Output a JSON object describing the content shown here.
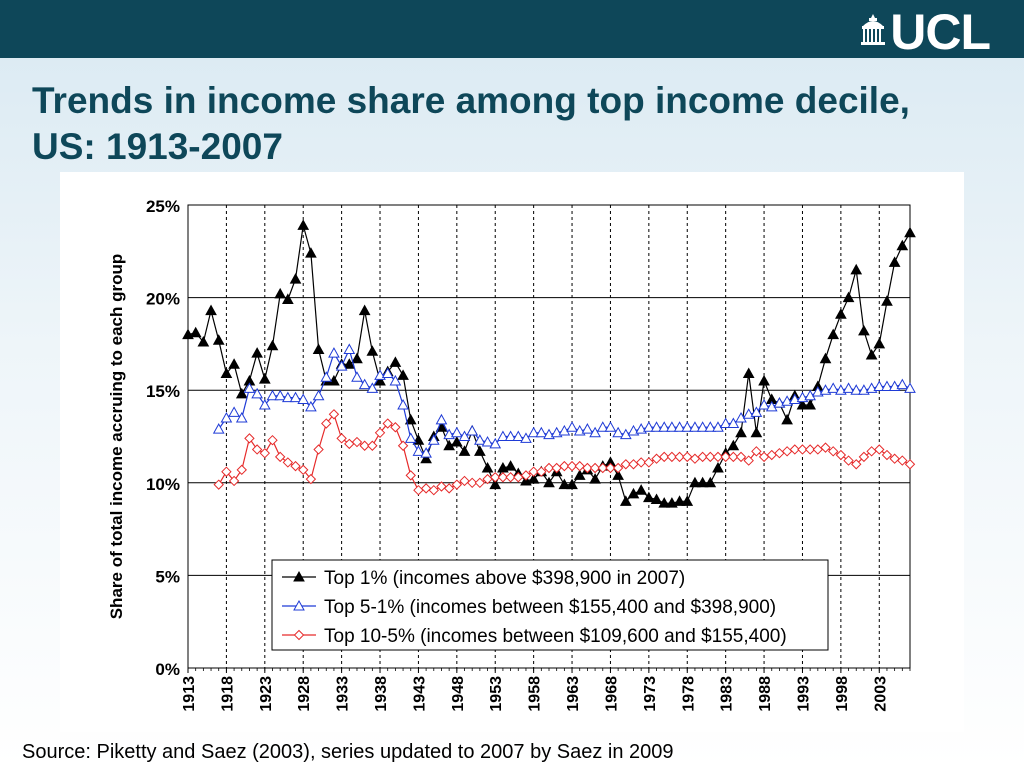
{
  "header": {
    "logo_text": "UCL",
    "bar_color": "#0e4759"
  },
  "slide": {
    "title": "Trends in income share among top income decile, US: 1913-2007",
    "source": "Source: Piketty and Saez (2003), series updated to 2007 by Saez in 2009"
  },
  "chart_data": {
    "type": "line",
    "ylabel": "Share of total income accruing to each group",
    "ylim": [
      0,
      25
    ],
    "yticks": [
      "0%",
      "5%",
      "10%",
      "15%",
      "20%",
      "25%"
    ],
    "xlim": [
      1913,
      2007
    ],
    "xticks": [
      "1913",
      "1918",
      "1923",
      "1928",
      "1933",
      "1938",
      "1943",
      "1948",
      "1953",
      "1958",
      "1963",
      "1968",
      "1973",
      "1978",
      "1983",
      "1988",
      "1993",
      "1998",
      "2003"
    ],
    "grid": {
      "horizontal": true,
      "vertical": "dashed"
    },
    "legend_position": "bottom-center",
    "series": [
      {
        "name": "Top 1% (incomes above $398,900 in 2007)",
        "color": "#000000",
        "marker": "filled-triangle",
        "x": [
          1913,
          1914,
          1915,
          1916,
          1917,
          1918,
          1919,
          1920,
          1921,
          1922,
          1923,
          1924,
          1925,
          1926,
          1927,
          1928,
          1929,
          1930,
          1931,
          1932,
          1933,
          1934,
          1935,
          1936,
          1937,
          1938,
          1939,
          1940,
          1941,
          1942,
          1943,
          1944,
          1945,
          1946,
          1947,
          1948,
          1949,
          1950,
          1951,
          1952,
          1953,
          1954,
          1955,
          1956,
          1957,
          1958,
          1959,
          1960,
          1961,
          1962,
          1963,
          1964,
          1965,
          1966,
          1967,
          1968,
          1969,
          1970,
          1971,
          1972,
          1973,
          1974,
          1975,
          1976,
          1977,
          1978,
          1979,
          1980,
          1981,
          1982,
          1983,
          1984,
          1985,
          1986,
          1987,
          1988,
          1989,
          1990,
          1991,
          1992,
          1993,
          1994,
          1995,
          1996,
          1997,
          1998,
          1999,
          2000,
          2001,
          2002,
          2003,
          2004,
          2005,
          2006,
          2007
        ],
        "y": [
          18.0,
          18.1,
          17.6,
          19.3,
          17.7,
          15.9,
          16.4,
          14.8,
          15.5,
          17.0,
          15.6,
          17.4,
          20.2,
          19.9,
          21.0,
          23.9,
          22.4,
          17.2,
          15.5,
          15.5,
          16.4,
          16.4,
          16.7,
          19.3,
          17.1,
          15.5,
          16.0,
          16.5,
          15.8,
          13.4,
          12.3,
          11.3,
          12.5,
          13.0,
          12.0,
          12.2,
          11.7,
          12.8,
          11.7,
          10.8,
          9.9,
          10.8,
          10.9,
          10.5,
          10.1,
          10.2,
          10.6,
          10.0,
          10.6,
          9.9,
          9.9,
          10.4,
          10.7,
          10.2,
          10.9,
          11.1,
          10.4,
          9.0,
          9.4,
          9.6,
          9.2,
          9.1,
          8.9,
          8.9,
          9.0,
          9.0,
          10.0,
          10.0,
          10.0,
          10.8,
          11.6,
          12.0,
          12.7,
          15.9,
          12.7,
          15.5,
          14.5,
          14.3,
          13.4,
          14.7,
          14.2,
          14.2,
          15.2,
          16.7,
          18.0,
          19.1,
          20.0,
          21.5,
          18.2,
          16.9,
          17.5,
          19.8,
          21.9,
          22.8,
          23.5
        ]
      },
      {
        "name": "Top 5-1% (incomes between $155,400 and $398,900)",
        "color": "#1f3bd6",
        "marker": "open-triangle",
        "x": [
          1917,
          1918,
          1919,
          1920,
          1921,
          1922,
          1923,
          1924,
          1925,
          1926,
          1927,
          1928,
          1929,
          1930,
          1931,
          1932,
          1933,
          1934,
          1935,
          1936,
          1937,
          1938,
          1939,
          1940,
          1941,
          1942,
          1943,
          1944,
          1945,
          1946,
          1947,
          1948,
          1949,
          1950,
          1951,
          1952,
          1953,
          1954,
          1955,
          1956,
          1957,
          1958,
          1959,
          1960,
          1961,
          1962,
          1963,
          1964,
          1965,
          1966,
          1967,
          1968,
          1969,
          1970,
          1971,
          1972,
          1973,
          1974,
          1975,
          1976,
          1977,
          1978,
          1979,
          1980,
          1981,
          1982,
          1983,
          1984,
          1985,
          1986,
          1987,
          1988,
          1989,
          1990,
          1991,
          1992,
          1993,
          1994,
          1995,
          1996,
          1997,
          1998,
          1999,
          2000,
          2001,
          2002,
          2003,
          2004,
          2005,
          2006,
          2007
        ],
        "y": [
          12.9,
          13.5,
          13.8,
          13.5,
          15.1,
          14.8,
          14.2,
          14.7,
          14.7,
          14.6,
          14.6,
          14.5,
          14.1,
          14.7,
          15.7,
          17.0,
          16.3,
          17.2,
          15.7,
          15.3,
          15.1,
          15.8,
          15.9,
          15.5,
          14.2,
          12.4,
          11.7,
          11.6,
          12.3,
          13.4,
          12.6,
          12.7,
          12.5,
          12.8,
          12.3,
          12.2,
          12.1,
          12.5,
          12.5,
          12.5,
          12.4,
          12.7,
          12.7,
          12.6,
          12.7,
          12.8,
          13.0,
          12.8,
          12.9,
          12.7,
          13.0,
          13.0,
          12.7,
          12.6,
          12.8,
          12.9,
          13.0,
          13.0,
          13.0,
          13.0,
          13.0,
          13.0,
          13.0,
          13.0,
          13.0,
          13.0,
          13.2,
          13.2,
          13.5,
          13.7,
          13.8,
          14.2,
          14.1,
          14.3,
          14.4,
          14.5,
          14.6,
          14.7,
          14.9,
          15.0,
          15.1,
          15.0,
          15.1,
          15.0,
          15.0,
          15.1,
          15.2,
          15.2,
          15.2,
          15.3,
          15.1
        ]
      },
      {
        "name": "Top 10-5% (incomes between $109,600 and $155,400)",
        "color": "#e62a2a",
        "marker": "open-diamond",
        "x": [
          1917,
          1918,
          1919,
          1920,
          1921,
          1922,
          1923,
          1924,
          1925,
          1926,
          1927,
          1928,
          1929,
          1930,
          1931,
          1932,
          1933,
          1934,
          1935,
          1936,
          1937,
          1938,
          1939,
          1940,
          1941,
          1942,
          1943,
          1944,
          1945,
          1946,
          1947,
          1948,
          1949,
          1950,
          1951,
          1952,
          1953,
          1954,
          1955,
          1956,
          1957,
          1958,
          1959,
          1960,
          1961,
          1962,
          1963,
          1964,
          1965,
          1966,
          1967,
          1968,
          1969,
          1970,
          1971,
          1972,
          1973,
          1974,
          1975,
          1976,
          1977,
          1978,
          1979,
          1980,
          1981,
          1982,
          1983,
          1984,
          1985,
          1986,
          1987,
          1988,
          1989,
          1990,
          1991,
          1992,
          1993,
          1994,
          1995,
          1996,
          1997,
          1998,
          1999,
          2000,
          2001,
          2002,
          2003,
          2004,
          2005,
          2006,
          2007
        ],
        "y": [
          9.9,
          10.6,
          10.1,
          10.7,
          12.4,
          11.8,
          11.6,
          12.3,
          11.4,
          11.1,
          10.9,
          10.7,
          10.2,
          11.8,
          13.2,
          13.7,
          12.4,
          12.1,
          12.2,
          12.0,
          12.0,
          12.7,
          13.2,
          13.0,
          12.0,
          10.4,
          9.6,
          9.7,
          9.6,
          9.8,
          9.7,
          9.9,
          10.1,
          10.0,
          10.0,
          10.2,
          10.3,
          10.3,
          10.3,
          10.3,
          10.4,
          10.6,
          10.6,
          10.8,
          10.8,
          10.9,
          10.9,
          10.9,
          10.8,
          10.8,
          10.8,
          10.8,
          10.8,
          11.0,
          11.0,
          11.1,
          11.1,
          11.3,
          11.4,
          11.4,
          11.4,
          11.4,
          11.3,
          11.4,
          11.4,
          11.4,
          11.4,
          11.4,
          11.4,
          11.2,
          11.7,
          11.4,
          11.5,
          11.6,
          11.7,
          11.8,
          11.8,
          11.8,
          11.8,
          11.9,
          11.7,
          11.5,
          11.2,
          11.0,
          11.4,
          11.7,
          11.8,
          11.5,
          11.3,
          11.2,
          11.0
        ]
      }
    ]
  }
}
